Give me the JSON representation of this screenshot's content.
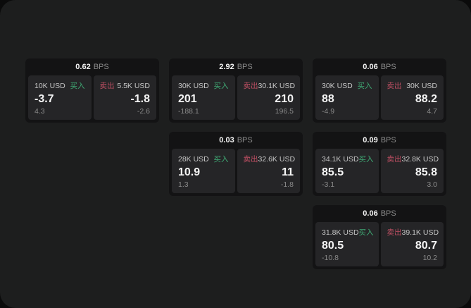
{
  "page": {
    "bps_suffix": "BPS",
    "buy_label": "买入",
    "sell_label": "卖出"
  },
  "colors": {
    "outside_bg": "#0b0b0b",
    "page_bg": "#1d1e1e",
    "card_bg": "#131314",
    "panel_bg": "#252527",
    "buy_green": "#3fa974",
    "sell_red": "#bf4f63",
    "text_primary": "#f5f5f5",
    "text_secondary": "#c7c7c7",
    "text_muted": "#8b8b8b"
  },
  "cards": [
    {
      "row": 1,
      "col": 1,
      "bps_value": "0.62",
      "buy": {
        "notional": "10K USD",
        "action": "买入",
        "price": "-3.7",
        "delta": "4.3"
      },
      "sell": {
        "notional": "5.5K USD",
        "action": "卖出",
        "price": "-1.8",
        "delta": "-2.6"
      }
    },
    {
      "row": 1,
      "col": 2,
      "bps_value": "2.92",
      "buy": {
        "notional": "30K USD",
        "action": "买入",
        "price": "201",
        "delta": "-188.1"
      },
      "sell": {
        "notional": "30.1K USD",
        "action": "卖出",
        "price": "210",
        "delta": "196.5"
      }
    },
    {
      "row": 1,
      "col": 3,
      "bps_value": "0.06",
      "buy": {
        "notional": "30K USD",
        "action": "买入",
        "price": "88",
        "delta": "-4.9"
      },
      "sell": {
        "notional": "30K USD",
        "action": "卖出",
        "price": "88.2",
        "delta": "4.7"
      }
    },
    {
      "row": 2,
      "col": 2,
      "bps_value": "0.03",
      "buy": {
        "notional": "28K USD",
        "action": "买入",
        "price": "10.9",
        "delta": "1.3"
      },
      "sell": {
        "notional": "32.6K USD",
        "action": "卖出",
        "price": "11",
        "delta": "-1.8"
      }
    },
    {
      "row": 2,
      "col": 3,
      "bps_value": "0.09",
      "buy": {
        "notional": "34.1K USD",
        "action": "买入",
        "price": "85.5",
        "delta": "-3.1"
      },
      "sell": {
        "notional": "32.8K USD",
        "action": "卖出",
        "price": "85.8",
        "delta": "3.0"
      }
    },
    {
      "row": 3,
      "col": 3,
      "bps_value": "0.06",
      "buy": {
        "notional": "31.8K USD",
        "action": "买入",
        "price": "80.5",
        "delta": "-10.8"
      },
      "sell": {
        "notional": "39.1K USD",
        "action": "卖出",
        "price": "80.7",
        "delta": "10.2"
      }
    }
  ]
}
